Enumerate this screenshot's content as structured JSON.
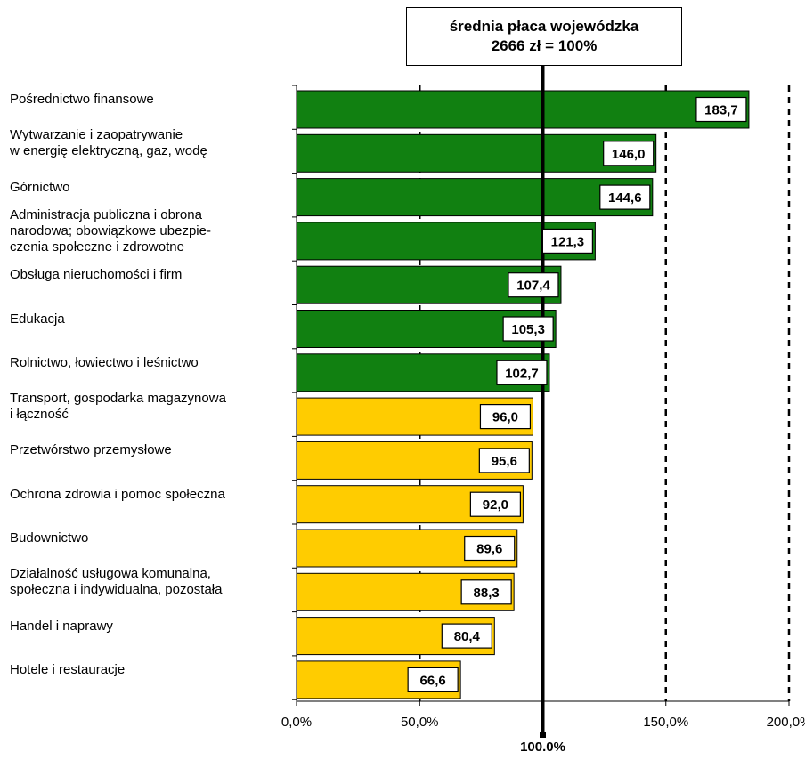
{
  "title_line1": "średnia płaca wojewódzka",
  "title_line2": "2666 zł = 100%",
  "reference_line_label": "100.0%",
  "x_tick_labels": [
    "0,0%",
    "50,0%",
    "150,0%",
    "200,0%"
  ],
  "colors": {
    "above_average": "#118011",
    "below_average": "#FFCC00",
    "bar_border": "#000000"
  },
  "chart_data": {
    "type": "bar",
    "orientation": "horizontal",
    "categories": [
      "Pośrednictwo finansowe",
      "Wytwarzanie i zaopatrywanie\nw energię elektryczną, gaz,  wodę",
      "Górnictwo",
      "Administracja publiczna i obrona\nnarodowa; obowiązkowe ubezpie-\nczenia społeczne i zdrowotne",
      "Obsługa nieruchomości i firm",
      "Edukacja",
      "Rolnictwo, łowiectwo i leśnictwo",
      "Transport, gospodarka magazynowa\ni łączność",
      "Przetwórstwo przemysłowe",
      "Ochrona zdrowia i pomoc społeczna",
      "Budownictwo",
      "Działalność usługowa komunalna,\nspołeczna i indywidualna, pozostała",
      "Handel i naprawy",
      "Hotele i restauracje"
    ],
    "values": [
      183.7,
      146.0,
      144.6,
      121.3,
      107.4,
      105.3,
      102.7,
      96.0,
      95.6,
      92.0,
      89.6,
      88.3,
      80.4,
      66.6
    ],
    "value_labels": [
      "183,7",
      "146,0",
      "144,6",
      "121,3",
      "107,4",
      "105,3",
      "102,7",
      "96,0",
      "95,6",
      "92,0",
      "89,6",
      "88,3",
      "80,4",
      "66,6"
    ],
    "xlim": [
      0,
      200
    ],
    "xticks": [
      0,
      50,
      150,
      200
    ],
    "reference_value": 100,
    "gridlines": [
      50,
      150,
      200
    ],
    "gridline_style": "dashed",
    "title": "średnia płaca wojewódzka 2666 zł = 100%"
  }
}
